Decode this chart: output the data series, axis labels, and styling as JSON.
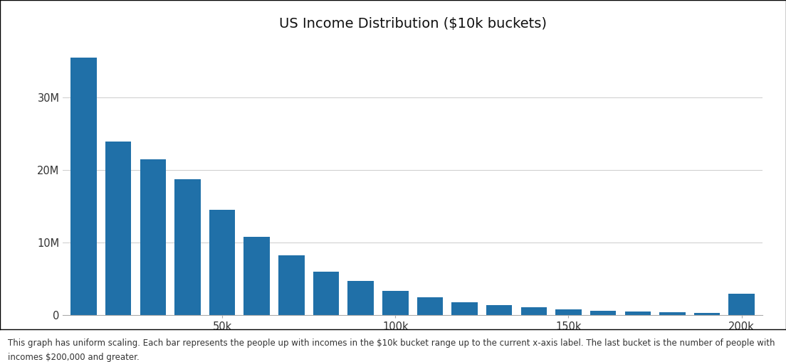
{
  "title": "US Income Distribution ($10k buckets)",
  "bar_color": "#2070a8",
  "background_color": "#ffffff",
  "values": [
    35500000,
    24000000,
    21500000,
    18700000,
    14500000,
    10800000,
    8200000,
    6000000,
    4700000,
    3300000,
    2400000,
    1800000,
    1400000,
    1100000,
    800000,
    600000,
    500000,
    350000,
    250000,
    2900000
  ],
  "x_tick_positions": [
    4,
    9,
    14,
    19
  ],
  "x_tick_labels": [
    "50k",
    "100k",
    "150k",
    "200k"
  ],
  "y_tick_labels": [
    "0",
    "10M",
    "20M",
    "30M"
  ],
  "y_tick_values": [
    0,
    10000000,
    20000000,
    30000000
  ],
  "ylim": [
    0,
    38000000
  ],
  "footnote_line1": "This graph has uniform scaling. Each bar represents the people up with incomes in the $10k bucket range up to the current x-axis label. The last bucket is the number of people with",
  "footnote_line2": "incomes $200,000 and greater.",
  "footnote_fontsize": 8.5,
  "title_fontsize": 14
}
